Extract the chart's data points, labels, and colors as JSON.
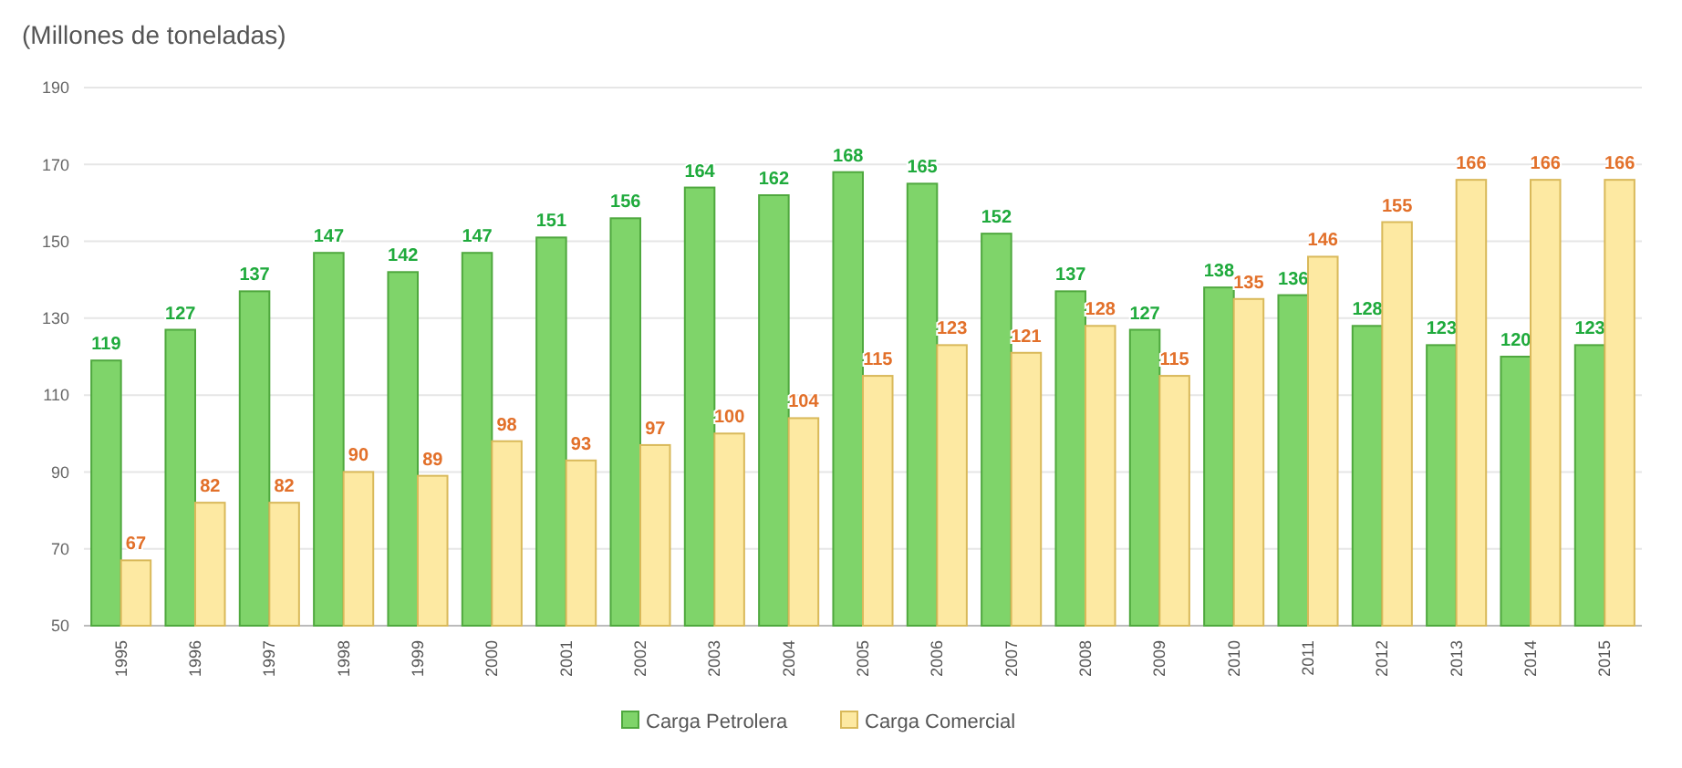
{
  "chart_data": {
    "type": "bar",
    "title": "(Millones de toneladas)",
    "categories": [
      "1995",
      "1996",
      "1997",
      "1998",
      "1999",
      "2000",
      "2001",
      "2002",
      "2003",
      "2004",
      "2005",
      "2006",
      "2007",
      "2008",
      "2009",
      "2010",
      "2011",
      "2012",
      "2013",
      "2014",
      "2015"
    ],
    "series": [
      {
        "name": "Carga Petrolera",
        "color": "#7fd46a",
        "values": [
          119,
          127,
          137,
          147,
          142,
          147,
          151,
          156,
          164,
          162,
          168,
          165,
          152,
          137,
          127,
          138,
          136,
          128,
          123,
          120,
          123
        ]
      },
      {
        "name": "Carga Comercial",
        "color": "#fde9a2",
        "values": [
          67,
          82,
          82,
          90,
          89,
          98,
          93,
          97,
          100,
          104,
          115,
          123,
          121,
          128,
          115,
          135,
          146,
          155,
          166,
          166,
          166
        ]
      }
    ],
    "ylim": [
      50,
      190
    ],
    "yticks": [
      50,
      70,
      90,
      110,
      130,
      150,
      170,
      190
    ],
    "grid": "y",
    "legend": "bottom",
    "data_labels": true
  }
}
